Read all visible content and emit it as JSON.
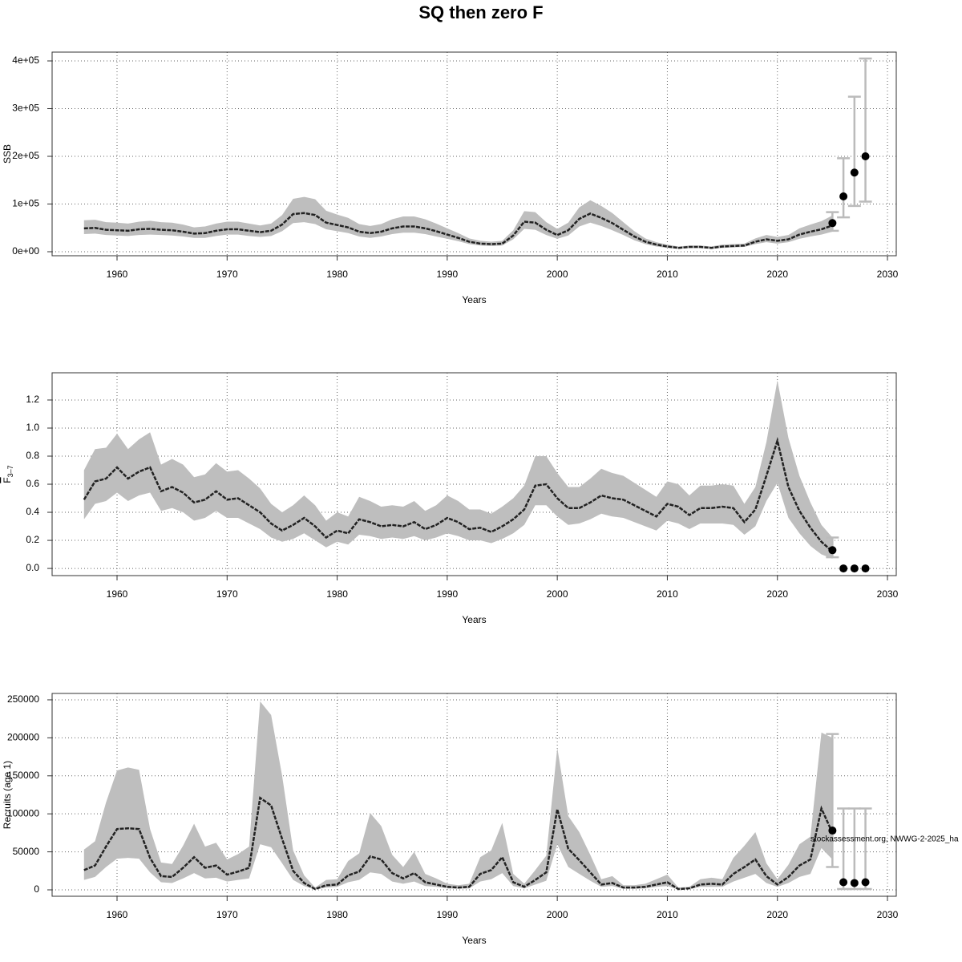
{
  "title": "SQ then zero F",
  "chart_data": [
    {
      "type": "line",
      "ylabel": "SSB",
      "xlabel": "Years",
      "grid": true,
      "band_color": "#bebebe",
      "color": "#222222",
      "errorbar_color": "#bbbbbb",
      "xlim": [
        1954.1,
        2030.8
      ],
      "xticks": [
        1960,
        1970,
        1980,
        1990,
        2000,
        2010,
        2020,
        2030
      ],
      "ylim": [
        -8400,
        418500
      ],
      "yticks": [
        {
          "value": 0,
          "label": "0e+00"
        },
        {
          "value": 100000,
          "label": "1e+05"
        },
        {
          "value": 200000,
          "label": "2e+05"
        },
        {
          "value": 300000,
          "label": "3e+05"
        },
        {
          "value": 400000,
          "label": "4e+05"
        }
      ],
      "x": [
        1957,
        1958,
        1959,
        1960,
        1961,
        1962,
        1963,
        1964,
        1965,
        1966,
        1967,
        1968,
        1969,
        1970,
        1971,
        1972,
        1973,
        1974,
        1975,
        1976,
        1977,
        1978,
        1979,
        1980,
        1981,
        1982,
        1983,
        1984,
        1985,
        1986,
        1987,
        1988,
        1989,
        1990,
        1991,
        1992,
        1993,
        1994,
        1995,
        1996,
        1997,
        1998,
        1999,
        2000,
        2001,
        2002,
        2003,
        2004,
        2005,
        2006,
        2007,
        2008,
        2009,
        2010,
        2011,
        2012,
        2013,
        2014,
        2015,
        2016,
        2017,
        2018,
        2019,
        2020,
        2021,
        2022,
        2023,
        2024,
        2025
      ],
      "values": [
        49000,
        50000,
        46000,
        45000,
        44000,
        47000,
        48000,
        46000,
        45000,
        42000,
        38000,
        39000,
        44000,
        47000,
        47000,
        44000,
        41000,
        44000,
        57000,
        79000,
        81000,
        77000,
        61000,
        56000,
        51000,
        42000,
        39000,
        42000,
        49000,
        53000,
        53000,
        49000,
        43000,
        36000,
        29000,
        21000,
        17000,
        16000,
        17000,
        34000,
        63000,
        61000,
        46000,
        35000,
        45000,
        69000,
        80000,
        71000,
        60000,
        46000,
        32000,
        21000,
        15000,
        11000,
        8000,
        10000,
        10000,
        8000,
        11000,
        12000,
        13000,
        21000,
        26000,
        23000,
        26000,
        36000,
        42000,
        47000,
        55000
      ],
      "lower": [
        37000,
        38000,
        35000,
        34000,
        33000,
        35000,
        36000,
        35000,
        34000,
        32000,
        29000,
        29000,
        33000,
        36000,
        36000,
        33000,
        31000,
        33000,
        43000,
        60000,
        62000,
        58000,
        47000,
        43000,
        39000,
        32000,
        29000,
        32000,
        37000,
        40000,
        40000,
        37000,
        32000,
        27000,
        22000,
        16000,
        13000,
        12000,
        13000,
        26000,
        48000,
        46000,
        35000,
        27000,
        34000,
        53000,
        61000,
        54000,
        45000,
        35000,
        24000,
        16000,
        11000,
        8000,
        6000,
        7500,
        7500,
        6000,
        8000,
        9000,
        10000,
        16000,
        20000,
        17000,
        20000,
        27000,
        32000,
        36000,
        42000
      ],
      "upper": [
        66000,
        67000,
        62000,
        61000,
        59000,
        63000,
        65000,
        62000,
        61000,
        57000,
        51000,
        53000,
        59000,
        63000,
        63000,
        59000,
        55000,
        59000,
        77000,
        111000,
        115000,
        110000,
        86000,
        78000,
        71000,
        58000,
        54000,
        58000,
        68000,
        74000,
        74000,
        68000,
        59000,
        49000,
        39000,
        28000,
        23000,
        21000,
        23000,
        45000,
        85000,
        83000,
        62000,
        48000,
        61000,
        93000,
        108000,
        96000,
        81000,
        62000,
        43000,
        28000,
        20000,
        15000,
        11000,
        13000,
        13000,
        11000,
        15000,
        16000,
        17000,
        28000,
        35000,
        31000,
        35000,
        49000,
        57000,
        64000,
        76000
      ],
      "proj_x": [
        2025,
        2026,
        2027,
        2028
      ],
      "proj_values": [
        60000,
        116000,
        166000,
        200000
      ],
      "proj_lower": [
        44000,
        72000,
        96000,
        105000
      ],
      "proj_upper": [
        83000,
        196000,
        325000,
        405000
      ]
    },
    {
      "type": "line",
      "ylabel": "F",
      "ylabel_sub": "3–7",
      "xlabel": "Years",
      "grid": true,
      "band_color": "#bebebe",
      "color": "#222222",
      "errorbar_color": "#bbbbbb",
      "xlim": [
        1954.1,
        2030.8
      ],
      "xticks": [
        1960,
        1970,
        1980,
        1990,
        2000,
        2010,
        2020,
        2030
      ],
      "ylim": [
        -0.051,
        1.394
      ],
      "yticks": [
        {
          "value": 0,
          "label": "0.0"
        },
        0.2,
        0.4,
        0.6,
        0.8,
        {
          "value": 1,
          "label": "1.0"
        },
        1.2
      ],
      "x": [
        1957,
        1958,
        1959,
        1960,
        1961,
        1962,
        1963,
        1964,
        1965,
        1966,
        1967,
        1968,
        1969,
        1970,
        1971,
        1972,
        1973,
        1974,
        1975,
        1976,
        1977,
        1978,
        1979,
        1980,
        1981,
        1982,
        1983,
        1984,
        1985,
        1986,
        1987,
        1988,
        1989,
        1990,
        1991,
        1992,
        1993,
        1994,
        1995,
        1996,
        1997,
        1998,
        1999,
        2000,
        2001,
        2002,
        2003,
        2004,
        2005,
        2006,
        2007,
        2008,
        2009,
        2010,
        2011,
        2012,
        2013,
        2014,
        2015,
        2016,
        2017,
        2018,
        2019,
        2020,
        2021,
        2022,
        2023,
        2024,
        2025
      ],
      "values": [
        0.49,
        0.62,
        0.64,
        0.72,
        0.64,
        0.69,
        0.72,
        0.55,
        0.58,
        0.54,
        0.47,
        0.49,
        0.55,
        0.49,
        0.5,
        0.45,
        0.4,
        0.32,
        0.27,
        0.31,
        0.36,
        0.3,
        0.22,
        0.27,
        0.25,
        0.35,
        0.33,
        0.3,
        0.31,
        0.3,
        0.33,
        0.28,
        0.31,
        0.36,
        0.33,
        0.28,
        0.29,
        0.26,
        0.3,
        0.35,
        0.42,
        0.59,
        0.6,
        0.5,
        0.43,
        0.43,
        0.47,
        0.52,
        0.5,
        0.49,
        0.45,
        0.41,
        0.37,
        0.46,
        0.44,
        0.38,
        0.43,
        0.43,
        0.44,
        0.43,
        0.33,
        0.42,
        0.66,
        0.91,
        0.58,
        0.41,
        0.29,
        0.19,
        0.12
      ],
      "lower": [
        0.35,
        0.46,
        0.48,
        0.54,
        0.48,
        0.52,
        0.54,
        0.41,
        0.43,
        0.4,
        0.34,
        0.36,
        0.41,
        0.36,
        0.36,
        0.32,
        0.28,
        0.22,
        0.19,
        0.21,
        0.25,
        0.2,
        0.15,
        0.19,
        0.17,
        0.24,
        0.23,
        0.21,
        0.22,
        0.21,
        0.23,
        0.2,
        0.22,
        0.25,
        0.23,
        0.2,
        0.2,
        0.18,
        0.21,
        0.25,
        0.31,
        0.45,
        0.45,
        0.37,
        0.31,
        0.32,
        0.35,
        0.39,
        0.37,
        0.36,
        0.33,
        0.3,
        0.27,
        0.34,
        0.32,
        0.28,
        0.32,
        0.32,
        0.32,
        0.31,
        0.24,
        0.3,
        0.48,
        0.61,
        0.36,
        0.25,
        0.16,
        0.1,
        0.07
      ],
      "upper": [
        0.7,
        0.85,
        0.86,
        0.96,
        0.85,
        0.92,
        0.97,
        0.74,
        0.78,
        0.74,
        0.65,
        0.67,
        0.75,
        0.69,
        0.7,
        0.64,
        0.57,
        0.46,
        0.4,
        0.45,
        0.52,
        0.45,
        0.34,
        0.4,
        0.37,
        0.51,
        0.48,
        0.44,
        0.45,
        0.44,
        0.48,
        0.41,
        0.45,
        0.52,
        0.48,
        0.42,
        0.42,
        0.39,
        0.44,
        0.5,
        0.59,
        0.8,
        0.8,
        0.68,
        0.58,
        0.58,
        0.64,
        0.71,
        0.68,
        0.66,
        0.61,
        0.56,
        0.51,
        0.62,
        0.6,
        0.52,
        0.59,
        0.59,
        0.6,
        0.59,
        0.46,
        0.58,
        0.9,
        1.34,
        0.93,
        0.66,
        0.47,
        0.31,
        0.22
      ],
      "proj_x": [
        2025,
        2026,
        2027,
        2028
      ],
      "proj_values": [
        0.13,
        0,
        0,
        0
      ],
      "proj_lower": [
        0.08,
        null,
        null,
        null
      ],
      "proj_upper": [
        0.22,
        null,
        null,
        null
      ]
    },
    {
      "type": "line",
      "ylabel": "Recruits (age 1)",
      "xlabel": "Years",
      "grid": true,
      "band_color": "#bebebe",
      "color": "#222222",
      "errorbar_color": "#bbbbbb",
      "annotation": "stockassessment.org, NWWG-2-2025_ha",
      "xlim": [
        1954.1,
        2030.8
      ],
      "xticks": [
        1960,
        1970,
        1980,
        1990,
        2000,
        2010,
        2020,
        2030
      ],
      "ylim": [
        -8440,
        258400
      ],
      "yticks": [
        0,
        50000,
        100000,
        150000,
        200000,
        250000
      ],
      "x": [
        1957,
        1958,
        1959,
        1960,
        1961,
        1962,
        1963,
        1964,
        1965,
        1966,
        1967,
        1968,
        1969,
        1970,
        1971,
        1972,
        1973,
        1974,
        1975,
        1976,
        1977,
        1978,
        1979,
        1980,
        1981,
        1982,
        1983,
        1984,
        1985,
        1986,
        1987,
        1988,
        1989,
        1990,
        1991,
        1992,
        1993,
        1994,
        1995,
        1996,
        1997,
        1998,
        1999,
        2000,
        2001,
        2002,
        2003,
        2004,
        2005,
        2006,
        2007,
        2008,
        2009,
        2010,
        2011,
        2012,
        2013,
        2014,
        2015,
        2016,
        2017,
        2018,
        2019,
        2020,
        2021,
        2022,
        2023,
        2024,
        2025
      ],
      "values": [
        26000,
        32000,
        57000,
        80000,
        81000,
        80000,
        42000,
        18000,
        17000,
        29000,
        43000,
        29000,
        32000,
        20000,
        24000,
        29000,
        121000,
        111000,
        67000,
        25000,
        9000,
        1000,
        6000,
        7000,
        19000,
        24000,
        44000,
        40000,
        22000,
        15000,
        22000,
        10000,
        7000,
        4000,
        3000,
        4000,
        21000,
        26000,
        43000,
        10000,
        4000,
        13000,
        23000,
        106000,
        54000,
        39000,
        23000,
        7000,
        9000,
        3000,
        3000,
        4000,
        7000,
        10000,
        1000,
        2000,
        7000,
        8000,
        7000,
        21000,
        30000,
        40000,
        18000,
        7000,
        17000,
        32000,
        40000,
        107000,
        75000
      ],
      "lower": [
        13000,
        17000,
        30000,
        41000,
        42000,
        41000,
        23000,
        10000,
        9000,
        15000,
        22000,
        15000,
        16000,
        11000,
        13000,
        15000,
        60000,
        56000,
        35000,
        13000,
        5000,
        500,
        3000,
        4000,
        10000,
        13000,
        23000,
        21000,
        11000,
        8000,
        11000,
        5000,
        4000,
        2000,
        1500,
        2000,
        11000,
        14000,
        22000,
        5000,
        2000,
        7000,
        12000,
        60000,
        30000,
        21000,
        12000,
        4000,
        5000,
        1500,
        1500,
        2000,
        4000,
        5000,
        500,
        1000,
        4000,
        4000,
        4000,
        11000,
        16000,
        21000,
        9000,
        4000,
        9000,
        17000,
        21000,
        55000,
        40000
      ],
      "upper": [
        53000,
        64000,
        115000,
        157000,
        161000,
        158000,
        80000,
        36000,
        34000,
        58000,
        87000,
        57000,
        62000,
        40000,
        47000,
        57000,
        248000,
        230000,
        150000,
        52000,
        19000,
        3000,
        13000,
        14000,
        38000,
        48000,
        101000,
        84000,
        46000,
        30000,
        50000,
        21000,
        15000,
        8000,
        6000,
        8000,
        43000,
        52000,
        88000,
        21000,
        8000,
        26000,
        45000,
        187000,
        97000,
        76000,
        46000,
        14000,
        18000,
        6000,
        6000,
        8000,
        14000,
        20000,
        3000,
        4000,
        14000,
        16000,
        14000,
        42000,
        58000,
        76000,
        35000,
        14000,
        33000,
        60000,
        70000,
        207000,
        200000
      ],
      "proj_x": [
        2025,
        2026,
        2027,
        2028
      ],
      "proj_values": [
        78000,
        10000,
        9000,
        10000
      ],
      "proj_lower": [
        30000,
        1000,
        1000,
        1000
      ],
      "proj_upper": [
        205000,
        107000,
        107000,
        107000
      ]
    }
  ]
}
